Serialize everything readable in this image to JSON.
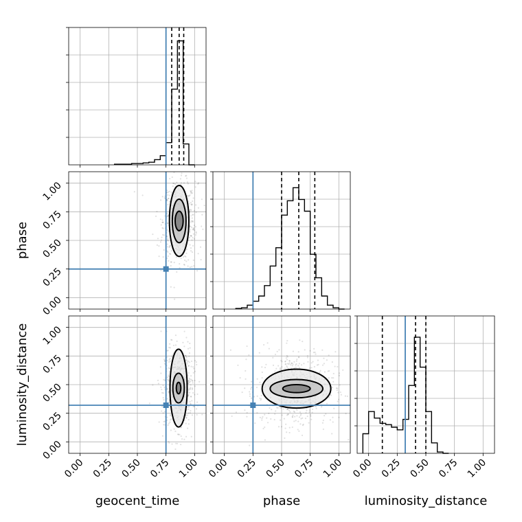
{
  "chart_data": {
    "type": "corner",
    "parameters": [
      "geocent_time",
      "phase",
      "luminosity_distance"
    ],
    "axis_ticks": [
      "0.00",
      "0.25",
      "0.50",
      "0.75",
      "1.00"
    ],
    "axis_range": [
      -0.1,
      1.1
    ],
    "truths": {
      "geocent_time": 0.75,
      "phase": 0.25,
      "luminosity_distance": 0.32
    },
    "grid": true,
    "truth_color": "#4682b4",
    "histograms": [
      {
        "param": "geocent_time",
        "edges": [
          0.3,
          0.35,
          0.4,
          0.45,
          0.5,
          0.55,
          0.6,
          0.65,
          0.7,
          0.75,
          0.8,
          0.85,
          0.9,
          0.95,
          1.0
        ],
        "counts": [
          0.005,
          0.005,
          0.005,
          0.01,
          0.01,
          0.015,
          0.02,
          0.04,
          0.07,
          0.17,
          0.58,
          0.95,
          0.16,
          0.0
        ],
        "quantiles": [
          0.8,
          0.865,
          0.905
        ]
      },
      {
        "param": "phase",
        "edges": [
          0.1,
          0.15,
          0.2,
          0.25,
          0.3,
          0.35,
          0.4,
          0.45,
          0.5,
          0.55,
          0.6,
          0.65,
          0.7,
          0.75,
          0.8,
          0.85,
          0.9,
          0.95,
          1.0,
          1.05
        ],
        "counts": [
          0.005,
          0.01,
          0.03,
          0.06,
          0.1,
          0.18,
          0.33,
          0.47,
          0.72,
          0.83,
          0.93,
          0.84,
          0.75,
          0.42,
          0.24,
          0.1,
          0.03,
          0.01,
          0.0
        ],
        "quantiles": [
          0.5,
          0.65,
          0.79
        ]
      },
      {
        "param": "luminosity_distance",
        "edges": [
          -0.05,
          0.0,
          0.05,
          0.1,
          0.15,
          0.2,
          0.25,
          0.3,
          0.35,
          0.4,
          0.45,
          0.5,
          0.55,
          0.6,
          0.65,
          0.7
        ],
        "counts": [
          0.15,
          0.32,
          0.27,
          0.23,
          0.22,
          0.2,
          0.18,
          0.26,
          0.52,
          0.89,
          0.66,
          0.32,
          0.08,
          0.01,
          0.0
        ],
        "quantiles": [
          0.12,
          0.41,
          0.5
        ]
      }
    ],
    "joint": [
      {
        "x_param": "geocent_time",
        "y_param": "phase",
        "center": [
          0.865,
          0.67
        ],
        "scatter_sigma": [
          0.07,
          0.17
        ],
        "contours": [
          [
            0.035,
            0.085
          ],
          [
            0.06,
            0.19
          ],
          [
            0.085,
            0.31
          ]
        ]
      },
      {
        "x_param": "geocent_time",
        "y_param": "luminosity_distance",
        "center": [
          0.86,
          0.47
        ],
        "scatter_sigma": [
          0.06,
          0.17
        ],
        "contours": [
          [
            0.02,
            0.05
          ],
          [
            0.05,
            0.13
          ],
          [
            0.075,
            0.34
          ]
        ]
      },
      {
        "x_param": "phase",
        "y_param": "luminosity_distance",
        "center": [
          0.63,
          0.465
        ],
        "scatter_sigma": [
          0.17,
          0.16
        ],
        "contours": [
          [
            0.12,
            0.035
          ],
          [
            0.23,
            0.08
          ],
          [
            0.3,
            0.17
          ]
        ]
      }
    ]
  }
}
